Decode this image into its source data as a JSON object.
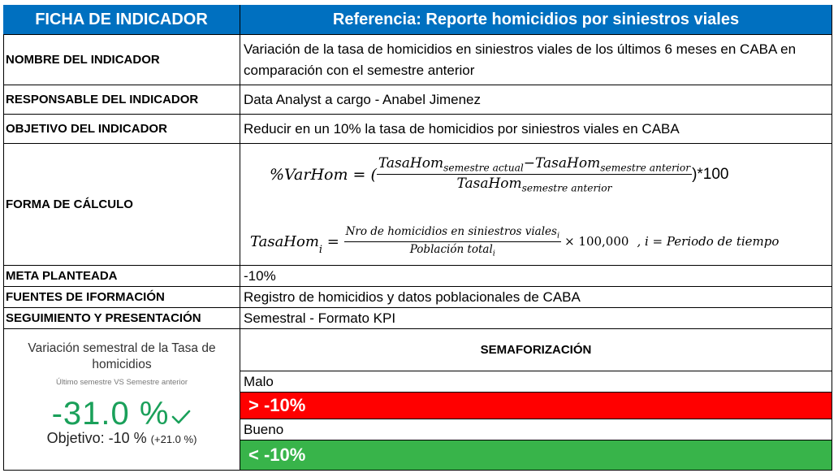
{
  "header": {
    "left": "FICHA DE INDICADOR",
    "right": "Referencia: Reporte homicidios por siniestros viales"
  },
  "rows": {
    "nombre": {
      "label": "NOMBRE DEL INDICADOR",
      "value": "Variación de la tasa de homicidios en siniestros viales de los últimos 6 meses en CABA en comparación con el semestre anterior"
    },
    "responsable": {
      "label": "RESPONSABLE DEL INDICADOR",
      "value": "Data Analyst a cargo - Anabel Jimenez"
    },
    "objetivo": {
      "label": "OBJETIVO DEL INDICADOR",
      "value": "Reducir en un 10% la tasa de homicidios por siniestros viales en CABA"
    },
    "forma": {
      "label": "FORMA DE CÁLCULO"
    },
    "meta": {
      "label": "META PLANTEADA",
      "value": "-10%"
    },
    "fuentes": {
      "label": "FUENTES DE IFORMACIÓN",
      "value": "Registro de homicidios y datos poblacionales de CABA"
    },
    "seguimiento": {
      "label": "SEGUIMIENTO Y PRESENTACIÓN",
      "value": "Semestral - Formato KPI"
    }
  },
  "formula1": {
    "lhs": "%VarHom = (",
    "num_a": "TasaHom",
    "num_a_sub": "semestre actual",
    "minus": "−",
    "num_b": "TasaHom",
    "num_b_sub": "semestre anterior",
    "den": "TasaHom",
    "den_sub": "semestre anterior",
    "tail": ")*100"
  },
  "formula2": {
    "lhs": "TasaHom",
    "lhs_sub": "i",
    "eq": " = ",
    "num": "Nro de homicidios en siniestros viales",
    "num_sub": "i",
    "den": "Población total",
    "den_sub": "i",
    "times": "× 100,000",
    "cond": ", i = Periodo de tiempo"
  },
  "kpi": {
    "title": "Variación semestral de la Tasa de homicidios",
    "subtitle": "Último semestre VS Semestre anterior",
    "value": "-31.0 %",
    "check_icon": "checkmark-icon",
    "goal": "Objetivo: -10 %",
    "delta": "(+21.0 %)"
  },
  "semaforo": {
    "title": "SEMAFORIZACIÓN",
    "malo_label": "Malo",
    "malo_band": "> -10%",
    "bueno_label": "Bueno",
    "bueno_band": "< -10%"
  },
  "colors": {
    "header_blue": "#0070c0",
    "bad_red": "#ff0000",
    "good_green": "#38b44a",
    "kpi_green": "#1aa05a"
  }
}
